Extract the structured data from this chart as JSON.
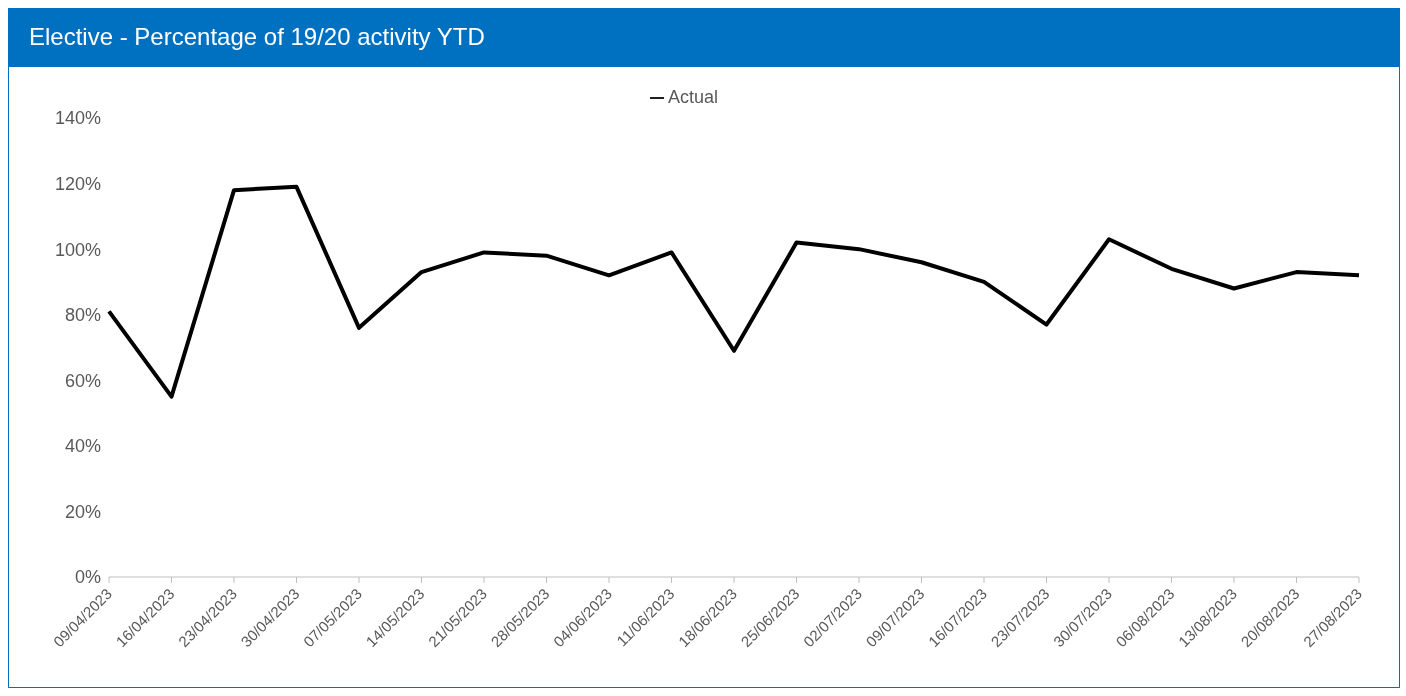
{
  "chart_data": {
    "type": "line",
    "title": "Elective - Percentage of 19/20 activity YTD",
    "categories": [
      "09/04/2023",
      "16/04/2023",
      "23/04/2023",
      "30/04/2023",
      "07/05/2023",
      "14/05/2023",
      "21/05/2023",
      "28/05/2023",
      "04/06/2023",
      "11/06/2023",
      "18/06/2023",
      "25/06/2023",
      "02/07/2023",
      "09/07/2023",
      "16/07/2023",
      "23/07/2023",
      "30/07/2023",
      "06/08/2023",
      "13/08/2023",
      "20/08/2023",
      "27/08/2023"
    ],
    "series": [
      {
        "name": "Actual",
        "color": "#000000",
        "values": [
          81,
          55,
          118,
          119,
          76,
          93,
          99,
          98,
          92,
          99,
          69,
          102,
          100,
          96,
          90,
          77,
          103,
          94,
          88,
          93,
          92
        ]
      }
    ],
    "ylim": [
      0,
      140
    ],
    "yticks": [
      {
        "value": 0,
        "label": "0%"
      },
      {
        "value": 20,
        "label": "20%"
      },
      {
        "value": 40,
        "label": "40%"
      },
      {
        "value": 60,
        "label": "60%"
      },
      {
        "value": 80,
        "label": "80%"
      },
      {
        "value": 100,
        "label": "100%"
      },
      {
        "value": 120,
        "label": "120%"
      },
      {
        "value": 140,
        "label": "140%"
      }
    ],
    "grid": false,
    "legend": "top",
    "marker": "none",
    "line_style": "solid"
  }
}
